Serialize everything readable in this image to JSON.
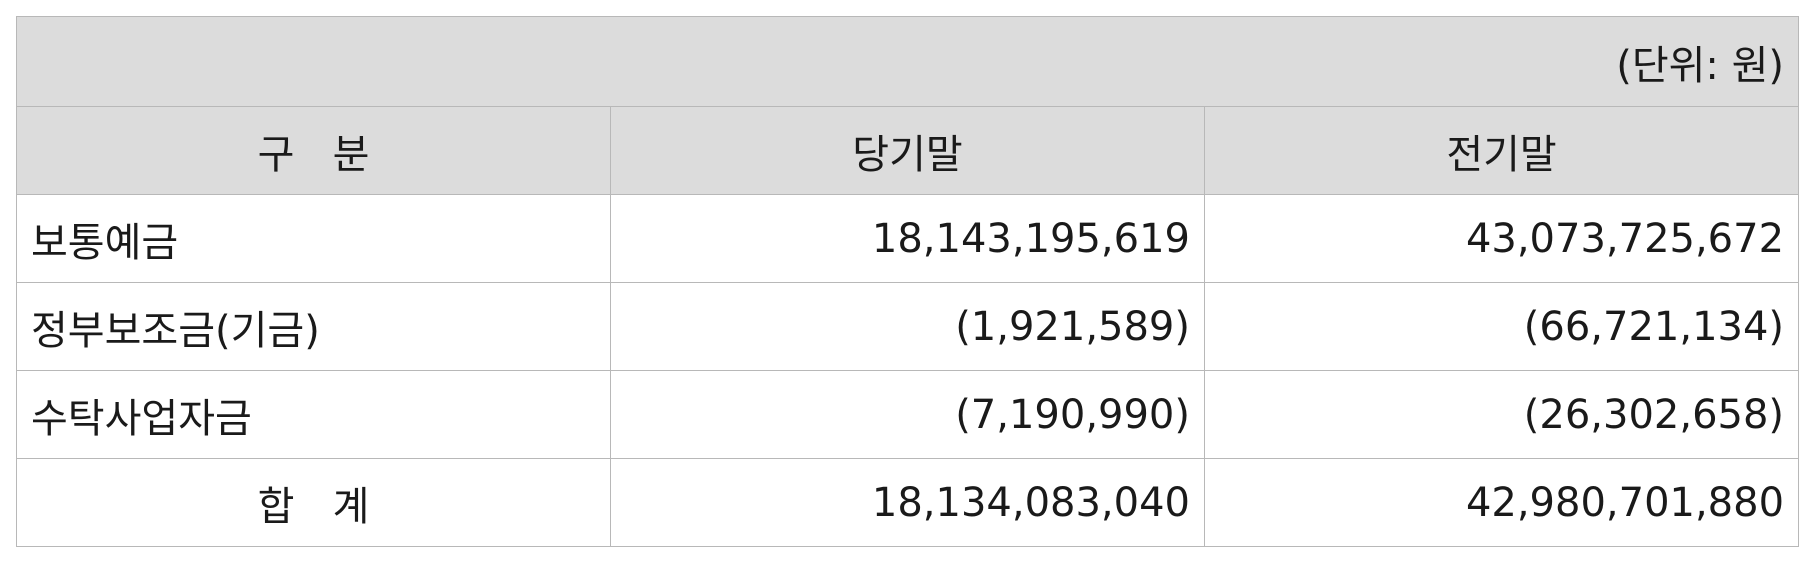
{
  "unit_label": "(단위: 원)",
  "columns": [
    "구   분",
    "당기말",
    "전기말"
  ],
  "rows": [
    {
      "label": "보통예금",
      "current": "18,143,195,619",
      "previous": "43,073,725,672"
    },
    {
      "label": "정부보조금(기금)",
      "current": "(1,921,589)",
      "previous": "(66,721,134)"
    },
    {
      "label": "수탁사업자금",
      "current": "(7,190,990)",
      "previous": "(26,302,658)"
    }
  ],
  "total": {
    "label": "합   계",
    "current": "18,134,083,040",
    "previous": "42,980,701,880"
  }
}
